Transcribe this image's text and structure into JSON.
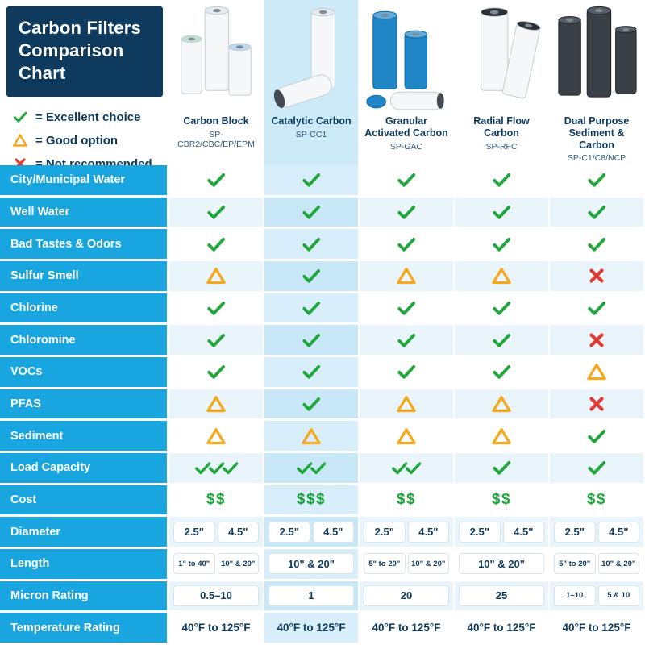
{
  "colors": {
    "header_navy": "#0e3a5e",
    "row_label_blue": "#18a5e0",
    "column_highlight": "#cdeaf8",
    "row_tint": "#e9f4fb",
    "check_green": "#21a63c",
    "warning_amber": "#f5a81c",
    "cross_red": "#e03a36",
    "cost_green": "#1ea53b",
    "text_navy": "#0e3a5e"
  },
  "chart_data": {
    "type": "table",
    "title": "Carbon Filters Comparison Chart",
    "title_lines": [
      "Carbon Filters",
      "Comparison",
      "Chart"
    ],
    "legend": [
      {
        "icon": "check",
        "label": "= Excellent choice"
      },
      {
        "icon": "triangle",
        "label": "= Good option"
      },
      {
        "icon": "cross",
        "label": "= Not recommended"
      }
    ],
    "columns": [
      {
        "name": "Carbon Block",
        "model": "SP-CBR2/CBC/EP/EPM",
        "highlighted": false,
        "image": "carbon-block"
      },
      {
        "name": "Catalytic Carbon",
        "model": "SP-CC1",
        "highlighted": true,
        "image": "catalytic-carbon"
      },
      {
        "name": "Granular Activated Carbon",
        "model": "SP-GAC",
        "highlighted": false,
        "image": "granular-activated-carbon"
      },
      {
        "name": "Radial Flow Carbon",
        "model": "SP-RFC",
        "highlighted": false,
        "image": "radial-flow-carbon"
      },
      {
        "name": "Dual Purpose Sediment & Carbon",
        "model": "SP-C1/C8/NCP",
        "highlighted": false,
        "image": "dual-purpose"
      }
    ],
    "rows": [
      {
        "label": "City/Municipal Water",
        "type": "icons",
        "cells": [
          {
            "icon": "check",
            "count": 1
          },
          {
            "icon": "check",
            "count": 1
          },
          {
            "icon": "check",
            "count": 1
          },
          {
            "icon": "check",
            "count": 1
          },
          {
            "icon": "check",
            "count": 1
          }
        ]
      },
      {
        "label": "Well Water",
        "type": "icons",
        "cells": [
          {
            "icon": "check",
            "count": 1
          },
          {
            "icon": "check",
            "count": 1
          },
          {
            "icon": "check",
            "count": 1
          },
          {
            "icon": "check",
            "count": 1
          },
          {
            "icon": "check",
            "count": 1
          }
        ]
      },
      {
        "label": "Bad Tastes & Odors",
        "type": "icons",
        "cells": [
          {
            "icon": "check",
            "count": 1
          },
          {
            "icon": "check",
            "count": 1
          },
          {
            "icon": "check",
            "count": 1
          },
          {
            "icon": "check",
            "count": 1
          },
          {
            "icon": "check",
            "count": 1
          }
        ]
      },
      {
        "label": "Sulfur Smell",
        "type": "icons",
        "cells": [
          {
            "icon": "triangle",
            "count": 1
          },
          {
            "icon": "check",
            "count": 1
          },
          {
            "icon": "triangle",
            "count": 1
          },
          {
            "icon": "triangle",
            "count": 1
          },
          {
            "icon": "cross",
            "count": 1
          }
        ]
      },
      {
        "label": "Chlorine",
        "type": "icons",
        "cells": [
          {
            "icon": "check",
            "count": 1
          },
          {
            "icon": "check",
            "count": 1
          },
          {
            "icon": "check",
            "count": 1
          },
          {
            "icon": "check",
            "count": 1
          },
          {
            "icon": "check",
            "count": 1
          }
        ]
      },
      {
        "label": "Chloromine",
        "type": "icons",
        "cells": [
          {
            "icon": "check",
            "count": 1
          },
          {
            "icon": "check",
            "count": 1
          },
          {
            "icon": "check",
            "count": 1
          },
          {
            "icon": "check",
            "count": 1
          },
          {
            "icon": "cross",
            "count": 1
          }
        ]
      },
      {
        "label": "VOCs",
        "type": "icons",
        "cells": [
          {
            "icon": "check",
            "count": 1
          },
          {
            "icon": "check",
            "count": 1
          },
          {
            "icon": "check",
            "count": 1
          },
          {
            "icon": "check",
            "count": 1
          },
          {
            "icon": "triangle",
            "count": 1
          }
        ]
      },
      {
        "label": "PFAS",
        "type": "icons",
        "cells": [
          {
            "icon": "triangle",
            "count": 1
          },
          {
            "icon": "check",
            "count": 1
          },
          {
            "icon": "triangle",
            "count": 1
          },
          {
            "icon": "triangle",
            "count": 1
          },
          {
            "icon": "cross",
            "count": 1
          }
        ]
      },
      {
        "label": "Sediment",
        "type": "icons",
        "cells": [
          {
            "icon": "triangle",
            "count": 1
          },
          {
            "icon": "triangle",
            "count": 1
          },
          {
            "icon": "triangle",
            "count": 1
          },
          {
            "icon": "triangle",
            "count": 1
          },
          {
            "icon": "check",
            "count": 1
          }
        ]
      },
      {
        "label": "Load Capacity",
        "type": "icons",
        "cells": [
          {
            "icon": "check",
            "count": 3
          },
          {
            "icon": "check",
            "count": 2
          },
          {
            "icon": "check",
            "count": 2
          },
          {
            "icon": "check",
            "count": 1
          },
          {
            "icon": "check",
            "count": 1
          }
        ]
      },
      {
        "label": "Cost",
        "type": "cost",
        "cells": [
          "$$",
          "$$$",
          "$$",
          "$$",
          "$$"
        ]
      },
      {
        "label": "Diameter",
        "type": "boxes",
        "cells": [
          [
            "2.5\"",
            "4.5\""
          ],
          [
            "2.5\"",
            "4.5\""
          ],
          [
            "2.5\"",
            "4.5\""
          ],
          [
            "2.5\"",
            "4.5\""
          ],
          [
            "2.5\"",
            "4.5\""
          ]
        ]
      },
      {
        "label": "Length",
        "type": "boxes",
        "cells": [
          [
            "1\" to 40\"",
            "10\" & 20\""
          ],
          [
            "10\" & 20\""
          ],
          [
            "5\" to 20\"",
            "10\" & 20\""
          ],
          [
            "10\" & 20\""
          ],
          [
            "5\" to 20\"",
            "10\" & 20\""
          ]
        ]
      },
      {
        "label": "Micron Rating",
        "type": "boxes",
        "cells": [
          [
            "0.5–10"
          ],
          [
            "1"
          ],
          [
            "20"
          ],
          [
            "25"
          ],
          [
            "1–10",
            "5 & 10"
          ]
        ]
      },
      {
        "label": "Temperature Rating",
        "type": "text",
        "cells": [
          "40°F to 125°F",
          "40°F to 125°F",
          "40°F to 125°F",
          "40°F to 125°F",
          "40°F to 125°F"
        ]
      }
    ]
  }
}
